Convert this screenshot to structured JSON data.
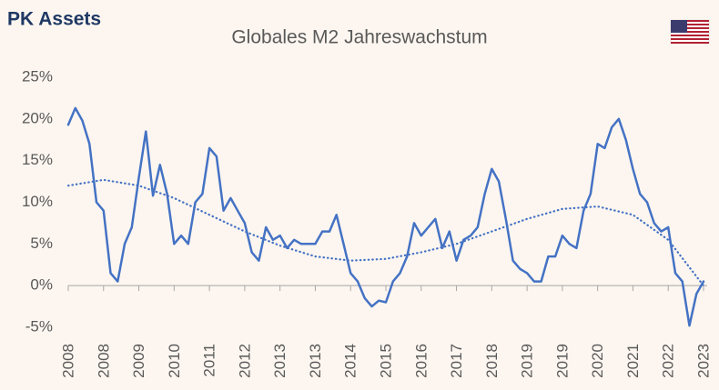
{
  "brand": "PK Assets",
  "chart_data": {
    "type": "line",
    "title": "Globales M2 Jahreswachstum",
    "xlim": [
      0,
      90
    ],
    "xticks": [
      {
        "value": 0,
        "label": "2008"
      },
      {
        "value": 5,
        "label": "2008"
      },
      {
        "value": 10,
        "label": "2009"
      },
      {
        "value": 15,
        "label": "2010"
      },
      {
        "value": 20,
        "label": "2011"
      },
      {
        "value": 25,
        "label": "2012"
      },
      {
        "value": 30,
        "label": "2013"
      },
      {
        "value": 35,
        "label": "2013"
      },
      {
        "value": 40,
        "label": "2014"
      },
      {
        "value": 45,
        "label": "2015"
      },
      {
        "value": 50,
        "label": "2016"
      },
      {
        "value": 55,
        "label": "2017"
      },
      {
        "value": 60,
        "label": "2018"
      },
      {
        "value": 65,
        "label": "2019"
      },
      {
        "value": 70,
        "label": "2019"
      },
      {
        "value": 75,
        "label": "2020"
      },
      {
        "value": 80,
        "label": "2021"
      },
      {
        "value": 85,
        "label": "2022"
      },
      {
        "value": 90,
        "label": "2023"
      }
    ],
    "ylim": [
      -5,
      25
    ],
    "yticks": [
      {
        "value": -5,
        "label": "-5%"
      },
      {
        "value": 0,
        "label": "0%"
      },
      {
        "value": 5,
        "label": "5%"
      },
      {
        "value": 10,
        "label": "10%"
      },
      {
        "value": 15,
        "label": "15%"
      },
      {
        "value": 20,
        "label": "20%"
      },
      {
        "value": 25,
        "label": "25%"
      }
    ],
    "series": [
      {
        "color": "#4472c4",
        "style": "solid",
        "values": [
          19.3,
          21.3,
          19.8,
          17,
          10,
          9,
          1.5,
          0.5,
          5,
          7,
          13,
          18.5,
          10.8,
          14.5,
          11,
          5,
          6,
          5,
          10,
          11,
          16.5,
          15.5,
          9,
          10.5,
          9,
          7.5,
          4,
          3,
          7,
          5.5,
          6,
          4.5,
          5.5,
          5,
          5,
          5,
          6.5,
          6.5,
          8.5,
          5,
          1.5,
          0.5,
          -1.5,
          -2.5,
          -1.8,
          -2,
          0.5,
          1.5,
          3.5,
          7.5,
          6,
          7,
          8,
          4.5,
          6.5,
          3,
          5.5,
          6,
          7,
          11,
          14,
          12.5,
          8,
          3,
          2,
          1.5,
          0.5,
          0.5,
          3.5,
          3.5,
          6,
          5,
          4.5,
          9,
          11,
          17,
          16.5,
          19,
          20,
          17.5,
          14,
          11,
          10,
          7.5,
          6.5,
          7,
          1.5,
          0.5,
          -4.8,
          -1,
          0.5
        ]
      },
      {
        "color": "#4472c4",
        "style": "dotted",
        "x": [
          0,
          5,
          10,
          15,
          20,
          25,
          30,
          35,
          40,
          45,
          50,
          55,
          60,
          65,
          70,
          75,
          80,
          85,
          90
        ],
        "values": [
          12,
          12.7,
          12,
          10.5,
          8.5,
          6.5,
          4.8,
          3.5,
          3,
          3.2,
          4,
          5,
          6.5,
          8,
          9.2,
          9.5,
          8.5,
          5.5,
          0
        ]
      }
    ]
  }
}
